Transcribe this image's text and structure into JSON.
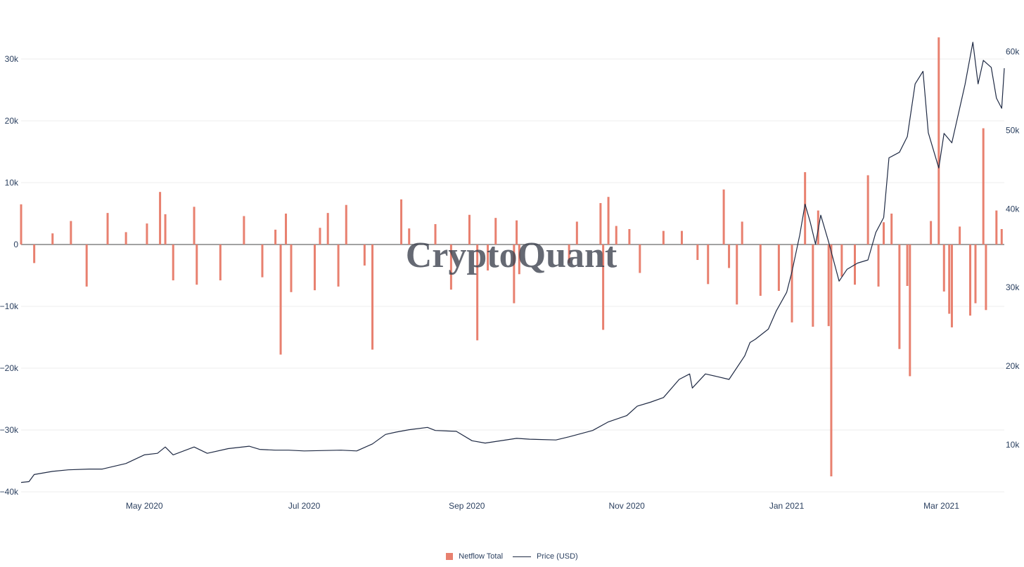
{
  "chart_data": {
    "type": "bar",
    "watermark": "CryptoQuant",
    "x_axis": {
      "start": "2020-03-15",
      "end": "2021-03-25",
      "tick_labels": [
        {
          "label": "May 2020",
          "date": "2020-05-01"
        },
        {
          "label": "Jul 2020",
          "date": "2020-07-01"
        },
        {
          "label": "Sep 2020",
          "date": "2020-09-01"
        },
        {
          "label": "Nov 2020",
          "date": "2020-11-01"
        },
        {
          "label": "Jan 2021",
          "date": "2021-01-01"
        },
        {
          "label": "Mar 2021",
          "date": "2021-03-01"
        }
      ]
    },
    "y_left": {
      "range": [
        -40000,
        35000
      ],
      "ticks": [
        30000,
        20000,
        10000,
        0,
        -10000,
        -20000,
        -30000,
        -40000
      ],
      "tick_labels": [
        "30k",
        "20k",
        "10k",
        "0",
        "−10k",
        "−20k",
        "−30k",
        "−40k"
      ]
    },
    "y_right": {
      "range": [
        4000,
        63000
      ],
      "ticks": [
        10000,
        20000,
        30000,
        40000,
        50000,
        60000
      ],
      "tick_labels": [
        "10k",
        "20k",
        "30k",
        "40k",
        "50k",
        "60k"
      ]
    },
    "series": [
      {
        "name": "Netflow Total",
        "type": "bar",
        "axis": "left",
        "color": "#e8806f",
        "points": [
          [
            "2020-03-15",
            6500
          ],
          [
            "2020-03-20",
            -3000
          ],
          [
            "2020-03-27",
            1800
          ],
          [
            "2020-04-03",
            3800
          ],
          [
            "2020-04-09",
            -6800
          ],
          [
            "2020-04-17",
            5100
          ],
          [
            "2020-04-24",
            2000
          ],
          [
            "2020-05-02",
            3400
          ],
          [
            "2020-05-07",
            8500
          ],
          [
            "2020-05-09",
            4900
          ],
          [
            "2020-05-12",
            -5800
          ],
          [
            "2020-05-20",
            6100
          ],
          [
            "2020-05-21",
            -6500
          ],
          [
            "2020-05-30",
            -5800
          ],
          [
            "2020-06-08",
            4600
          ],
          [
            "2020-06-15",
            -5300
          ],
          [
            "2020-06-20",
            2400
          ],
          [
            "2020-06-22",
            -17800
          ],
          [
            "2020-06-24",
            5000
          ],
          [
            "2020-06-26",
            -7700
          ],
          [
            "2020-07-05",
            -7400
          ],
          [
            "2020-07-07",
            2700
          ],
          [
            "2020-07-10",
            5100
          ],
          [
            "2020-07-14",
            -6800
          ],
          [
            "2020-07-17",
            6400
          ],
          [
            "2020-07-24",
            -3400
          ],
          [
            "2020-07-27",
            -17000
          ],
          [
            "2020-08-07",
            7300
          ],
          [
            "2020-08-10",
            2600
          ],
          [
            "2020-08-20",
            3300
          ],
          [
            "2020-08-26",
            -7300
          ],
          [
            "2020-09-02",
            4800
          ],
          [
            "2020-09-05",
            -15500
          ],
          [
            "2020-09-09",
            -4200
          ],
          [
            "2020-09-12",
            4300
          ],
          [
            "2020-09-19",
            -9500
          ],
          [
            "2020-09-20",
            3900
          ],
          [
            "2020-09-21",
            -4800
          ],
          [
            "2020-10-10",
            -3000
          ],
          [
            "2020-10-13",
            3700
          ],
          [
            "2020-10-22",
            6700
          ],
          [
            "2020-10-23",
            -13800
          ],
          [
            "2020-10-25",
            7700
          ],
          [
            "2020-10-28",
            3000
          ],
          [
            "2020-11-02",
            2500
          ],
          [
            "2020-11-06",
            -4600
          ],
          [
            "2020-11-15",
            2200
          ],
          [
            "2020-11-22",
            2200
          ],
          [
            "2020-11-28",
            -2500
          ],
          [
            "2020-12-02",
            -6400
          ],
          [
            "2020-12-08",
            8900
          ],
          [
            "2020-12-10",
            -3800
          ],
          [
            "2020-12-13",
            -9700
          ],
          [
            "2020-12-15",
            3700
          ],
          [
            "2020-12-22",
            -8300
          ],
          [
            "2020-12-29",
            -7500
          ],
          [
            "2021-01-03",
            -12600
          ],
          [
            "2021-01-08",
            11700
          ],
          [
            "2021-01-11",
            -13300
          ],
          [
            "2021-01-13",
            5500
          ],
          [
            "2021-01-17",
            -13200
          ],
          [
            "2021-01-18",
            -37500
          ],
          [
            "2021-01-22",
            -5200
          ],
          [
            "2021-01-27",
            -6500
          ],
          [
            "2021-02-01",
            11200
          ],
          [
            "2021-02-05",
            -6800
          ],
          [
            "2021-02-07",
            3600
          ],
          [
            "2021-02-10",
            5000
          ],
          [
            "2021-02-13",
            -16900
          ],
          [
            "2021-02-16",
            -6700
          ],
          [
            "2021-02-17",
            -21300
          ],
          [
            "2021-02-25",
            3800
          ],
          [
            "2021-02-28",
            33500
          ],
          [
            "2021-03-02",
            -7600
          ],
          [
            "2021-03-04",
            -11200
          ],
          [
            "2021-03-05",
            -13400
          ],
          [
            "2021-03-08",
            2900
          ],
          [
            "2021-03-12",
            -11500
          ],
          [
            "2021-03-14",
            -9500
          ],
          [
            "2021-03-17",
            18800
          ],
          [
            "2021-03-18",
            -10600
          ],
          [
            "2021-03-22",
            5500
          ],
          [
            "2021-03-24",
            2500
          ]
        ]
      },
      {
        "name": "Price (USD)",
        "type": "line",
        "axis": "right",
        "color": "#1f2a44",
        "points": [
          [
            "2020-03-15",
            5200
          ],
          [
            "2020-03-18",
            5300
          ],
          [
            "2020-03-20",
            6200
          ],
          [
            "2020-03-27",
            6600
          ],
          [
            "2020-04-02",
            6800
          ],
          [
            "2020-04-10",
            6900
          ],
          [
            "2020-04-15",
            6900
          ],
          [
            "2020-04-24",
            7600
          ],
          [
            "2020-05-01",
            8700
          ],
          [
            "2020-05-06",
            8900
          ],
          [
            "2020-05-09",
            9700
          ],
          [
            "2020-05-12",
            8700
          ],
          [
            "2020-05-20",
            9700
          ],
          [
            "2020-05-25",
            8900
          ],
          [
            "2020-06-02",
            9500
          ],
          [
            "2020-06-10",
            9800
          ],
          [
            "2020-06-14",
            9400
          ],
          [
            "2020-06-20",
            9300
          ],
          [
            "2020-06-25",
            9300
          ],
          [
            "2020-07-01",
            9200
          ],
          [
            "2020-07-15",
            9300
          ],
          [
            "2020-07-21",
            9200
          ],
          [
            "2020-07-27",
            10100
          ],
          [
            "2020-08-01",
            11300
          ],
          [
            "2020-08-05",
            11600
          ],
          [
            "2020-08-10",
            11900
          ],
          [
            "2020-08-17",
            12200
          ],
          [
            "2020-08-20",
            11800
          ],
          [
            "2020-08-28",
            11700
          ],
          [
            "2020-09-03",
            10500
          ],
          [
            "2020-09-08",
            10200
          ],
          [
            "2020-09-20",
            10800
          ],
          [
            "2020-09-25",
            10700
          ],
          [
            "2020-10-05",
            10600
          ],
          [
            "2020-10-10",
            11000
          ],
          [
            "2020-10-19",
            11800
          ],
          [
            "2020-10-25",
            12900
          ],
          [
            "2020-11-01",
            13700
          ],
          [
            "2020-11-05",
            14900
          ],
          [
            "2020-11-10",
            15400
          ],
          [
            "2020-11-15",
            16000
          ],
          [
            "2020-11-21",
            18300
          ],
          [
            "2020-11-25",
            19000
          ],
          [
            "2020-11-26",
            17200
          ],
          [
            "2020-12-01",
            19000
          ],
          [
            "2020-12-05",
            18700
          ],
          [
            "2020-12-10",
            18300
          ],
          [
            "2020-12-16",
            21300
          ],
          [
            "2020-12-18",
            23000
          ],
          [
            "2020-12-20",
            23400
          ],
          [
            "2020-12-25",
            24700
          ],
          [
            "2020-12-28",
            27000
          ],
          [
            "2021-01-01",
            29400
          ],
          [
            "2021-01-03",
            32000
          ],
          [
            "2021-01-06",
            36700
          ],
          [
            "2021-01-08",
            40600
          ],
          [
            "2021-01-10",
            38300
          ],
          [
            "2021-01-12",
            35500
          ],
          [
            "2021-01-14",
            39200
          ],
          [
            "2021-01-17",
            35800
          ],
          [
            "2021-01-21",
            30800
          ],
          [
            "2021-01-24",
            32300
          ],
          [
            "2021-01-28",
            33100
          ],
          [
            "2021-02-01",
            33500
          ],
          [
            "2021-02-04",
            37000
          ],
          [
            "2021-02-07",
            38900
          ],
          [
            "2021-02-09",
            46500
          ],
          [
            "2021-02-13",
            47200
          ],
          [
            "2021-02-16",
            49200
          ],
          [
            "2021-02-19",
            55900
          ],
          [
            "2021-02-22",
            57500
          ],
          [
            "2021-02-24",
            49700
          ],
          [
            "2021-02-28",
            45200
          ],
          [
            "2021-03-02",
            49600
          ],
          [
            "2021-03-05",
            48400
          ],
          [
            "2021-03-10",
            55800
          ],
          [
            "2021-03-13",
            61200
          ],
          [
            "2021-03-15",
            55900
          ],
          [
            "2021-03-17",
            58900
          ],
          [
            "2021-03-20",
            58000
          ],
          [
            "2021-03-22",
            54100
          ],
          [
            "2021-03-24",
            52800
          ],
          [
            "2021-03-25",
            57900
          ]
        ]
      }
    ],
    "grid": true,
    "legend_position": "bottom-center"
  }
}
